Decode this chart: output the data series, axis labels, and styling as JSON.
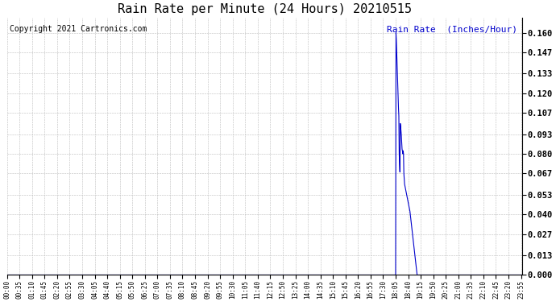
{
  "title": "Rain Rate per Minute (24 Hours) 20210515",
  "copyright_text": "Copyright 2021 Cartronics.com",
  "legend_label": "Rain Rate  (Inches/Hour)",
  "title_fontsize": 11,
  "legend_fontsize": 8,
  "copyright_fontsize": 7,
  "bg_color": "#ffffff",
  "line_color": "#0000cc",
  "grid_color": "#bbbbbb",
  "yticks": [
    0.0,
    0.013,
    0.027,
    0.04,
    0.053,
    0.067,
    0.08,
    0.093,
    0.107,
    0.12,
    0.133,
    0.147,
    0.16
  ],
  "ymax": 0.17,
  "total_minutes": 1440,
  "rain_data": [
    [
      1085,
      0.0
    ],
    [
      1086,
      0.16
    ],
    [
      1087,
      0.155
    ],
    [
      1088,
      0.148
    ],
    [
      1089,
      0.14
    ],
    [
      1090,
      0.132
    ],
    [
      1091,
      0.125
    ],
    [
      1092,
      0.118
    ],
    [
      1093,
      0.11
    ],
    [
      1094,
      0.105
    ],
    [
      1095,
      0.08
    ],
    [
      1096,
      0.073
    ],
    [
      1097,
      0.068
    ],
    [
      1098,
      0.1
    ],
    [
      1099,
      0.098
    ],
    [
      1100,
      0.095
    ],
    [
      1101,
      0.092
    ],
    [
      1102,
      0.088
    ],
    [
      1103,
      0.083
    ],
    [
      1104,
      0.082
    ],
    [
      1105,
      0.08
    ],
    [
      1106,
      0.082
    ],
    [
      1107,
      0.08
    ],
    [
      1108,
      0.067
    ],
    [
      1109,
      0.063
    ],
    [
      1110,
      0.06
    ],
    [
      1125,
      0.042
    ],
    [
      1145,
      0.0
    ]
  ],
  "xtick_positions": [
    0,
    35,
    70,
    105,
    140,
    175,
    210,
    245,
    280,
    315,
    350,
    385,
    420,
    455,
    490,
    525,
    560,
    595,
    630,
    665,
    700,
    735,
    770,
    805,
    840,
    875,
    910,
    945,
    980,
    1015,
    1050,
    1085,
    1120,
    1155,
    1190,
    1225,
    1260,
    1295,
    1330,
    1365,
    1400,
    1435
  ],
  "xtick_labels": [
    "00:00",
    "00:35",
    "01:10",
    "01:45",
    "02:20",
    "02:55",
    "03:30",
    "04:05",
    "04:40",
    "05:15",
    "05:50",
    "06:25",
    "07:00",
    "07:35",
    "08:10",
    "08:45",
    "09:20",
    "09:55",
    "10:30",
    "11:05",
    "11:40",
    "12:15",
    "12:50",
    "13:25",
    "14:00",
    "14:35",
    "15:10",
    "15:45",
    "16:20",
    "16:55",
    "17:30",
    "18:05",
    "18:40",
    "19:15",
    "19:50",
    "20:25",
    "21:00",
    "21:35",
    "22:10",
    "22:45",
    "23:20",
    "23:55"
  ]
}
